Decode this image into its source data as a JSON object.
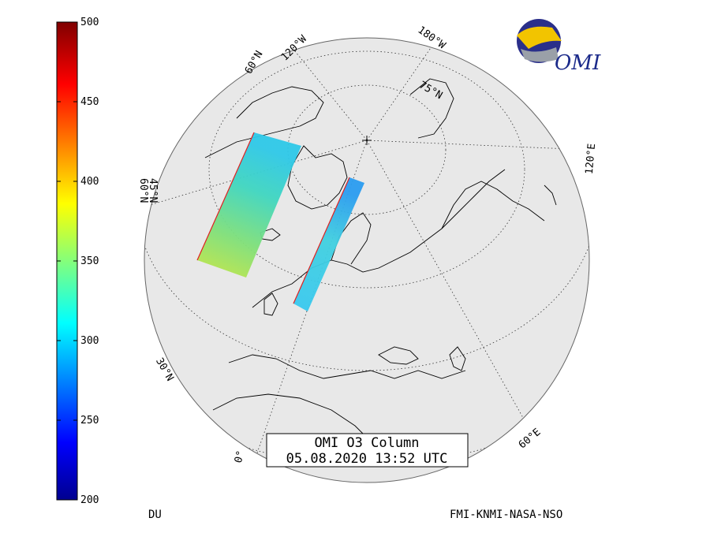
{
  "colorbar": {
    "unit": "DU",
    "ticks": [
      "500",
      "450",
      "400",
      "350",
      "300",
      "250",
      "200"
    ],
    "tick_values": [
      500,
      450,
      400,
      350,
      300,
      250,
      200
    ],
    "range": [
      200,
      500
    ]
  },
  "title": {
    "line1": "OMI O3 Column",
    "line2": "05.08.2020 13:52 UTC"
  },
  "credits": "FMI-KNMI-NASA-NSO",
  "logo": {
    "text": "OMI"
  },
  "grid_labels": {
    "lat_60_top": "60°N",
    "lon_120w": "120°W",
    "lon_180w": "180°W",
    "lat_75": "75°N",
    "lat_60_left": "60°N",
    "lat_45_left": "45°N",
    "lon_120e": "120°E",
    "lat_30": "30°N",
    "lon_0": "0°",
    "lon_60e": "60°E"
  },
  "colors": {
    "globe_fill": "#e8e8e8",
    "globe_edge": "#666666",
    "coast": "#000000",
    "grid": "#333333"
  }
}
